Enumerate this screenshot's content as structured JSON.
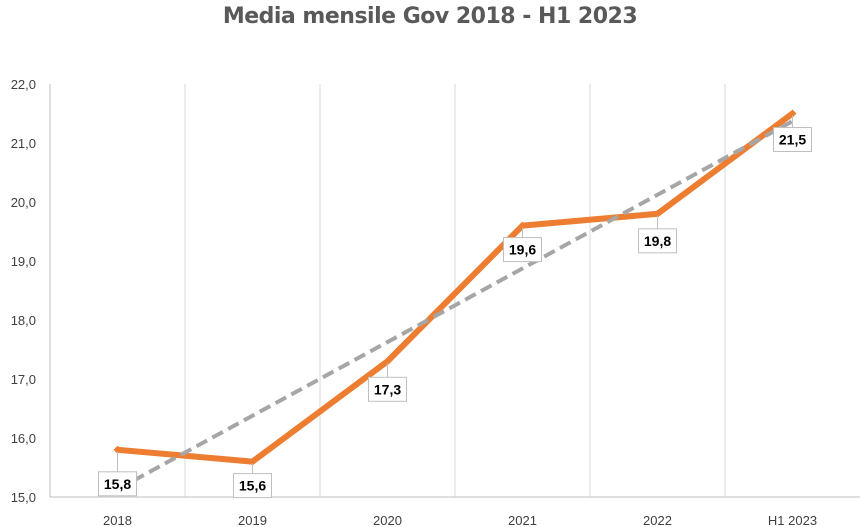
{
  "chart_data": {
    "type": "line",
    "title": "Media mensile Gov 2018 - H1 2023",
    "categories": [
      "2018",
      "2019",
      "2020",
      "2021",
      "2022",
      "H1 2023"
    ],
    "series": [
      {
        "values": [
          15.8,
          15.6,
          17.3,
          19.6,
          19.8,
          21.5
        ],
        "color": "#ED7D31",
        "labels": [
          "15,8",
          "15,6",
          "17,3",
          "19,6",
          "19,8",
          "21,5"
        ]
      }
    ],
    "trendline": {
      "type": "linear",
      "style": "dashed",
      "color": "#A6A6A6",
      "values": [
        15.13,
        21.37
      ]
    },
    "ylim": [
      15.0,
      22.0
    ],
    "yticks": [
      "15,0",
      "16,0",
      "17,0",
      "18,0",
      "19,0",
      "20,0",
      "21,0",
      "22,0"
    ],
    "grid": "vertical",
    "legend": "none",
    "xlabel": "",
    "ylabel": ""
  }
}
